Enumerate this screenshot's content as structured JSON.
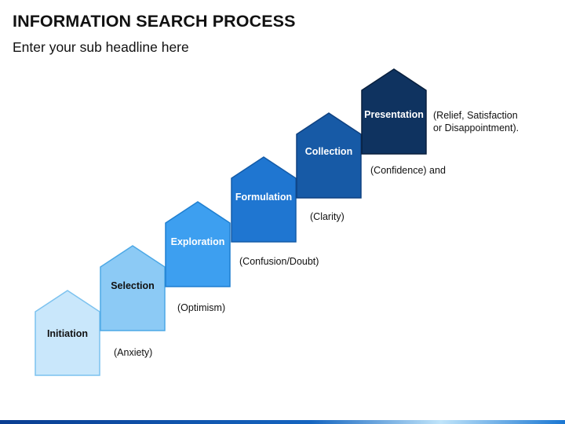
{
  "title": "INFORMATION SEARCH PROCESS",
  "subtitle": "Enter your sub headline here",
  "steps": [
    {
      "label": "Initiation",
      "annotation": "(Anxiety)",
      "fill": "#c9e7fb",
      "stroke": "#7cc2ef",
      "text_color": "#111111"
    },
    {
      "label": "Selection",
      "annotation": "(Optimism)",
      "fill": "#8ccaf5",
      "stroke": "#4ca8e6",
      "text_color": "#111111"
    },
    {
      "label": "Exploration",
      "annotation": "(Confusion/Doubt)",
      "fill": "#3d9ff0",
      "stroke": "#1f7fd0",
      "text_color": "#ffffff"
    },
    {
      "label": "Formulation",
      "annotation": "(Clarity)",
      "fill": "#1f76d1",
      "stroke": "#135ba8",
      "text_color": "#ffffff"
    },
    {
      "label": "Collection",
      "annotation": "(Confidence) and",
      "fill": "#175aa6",
      "stroke": "#0f4180",
      "text_color": "#ffffff"
    },
    {
      "label": "Presentation",
      "annotation_lines": [
        "(Relief, Satisfaction",
        "or Disappointment)."
      ],
      "fill": "#0f3360",
      "stroke": "#081f3d",
      "text_color": "#ffffff"
    }
  ]
}
